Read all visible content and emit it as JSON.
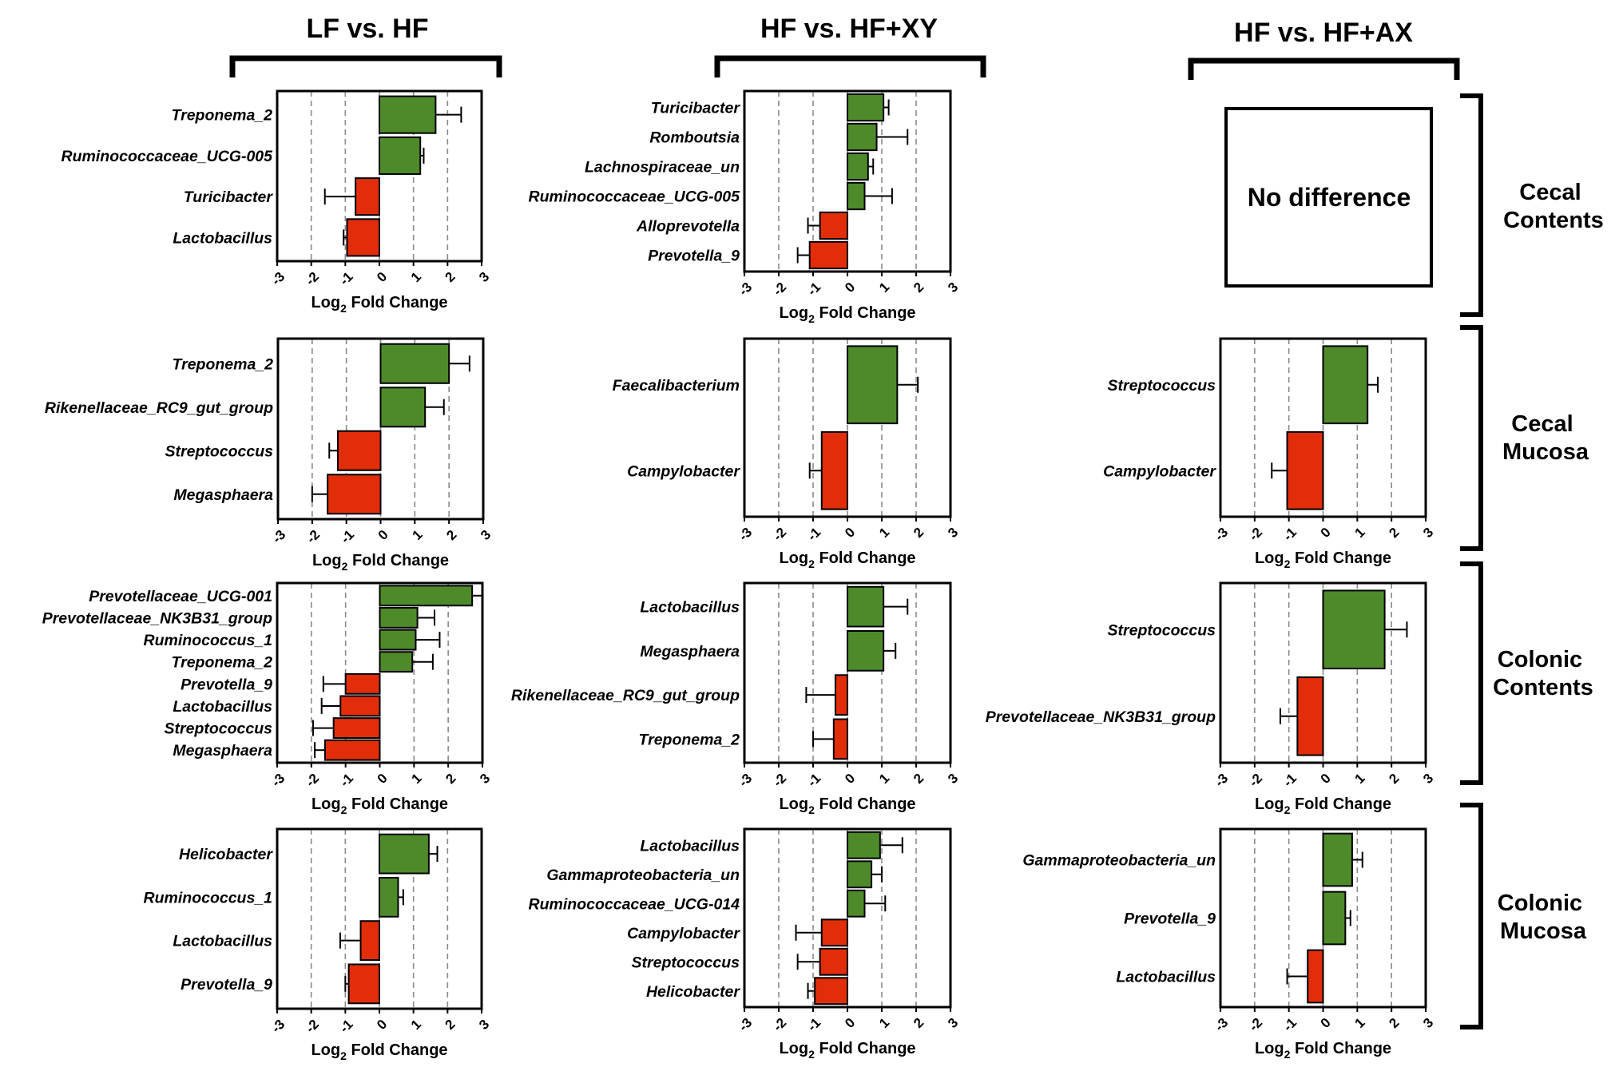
{
  "column_titles": [
    "LF vs. HF",
    "HF vs. HF+XY",
    "HF vs. HF+AX"
  ],
  "row_labels": [
    [
      "Cecal",
      "Contents"
    ],
    [
      "Cecal",
      "Mucosa"
    ],
    [
      "Colonic",
      "Contents"
    ],
    [
      "Colonic",
      "Mucosa"
    ]
  ],
  "no_difference_text": "No difference",
  "axis": {
    "title_main": "Log",
    "title_sub": "2",
    "title_rest": " Fold Change",
    "ticks": [
      "-3",
      "-2",
      "-1",
      "0",
      "1",
      "2",
      "3"
    ]
  },
  "colors": {
    "increase": "#4e8a2a",
    "decrease": "#e12d0a",
    "grid": "#8a8a8a",
    "frame": "#000000"
  },
  "chart_data": [
    {
      "type": "bar",
      "orientation": "horizontal",
      "column": "LF vs. HF",
      "row": "Cecal Contents",
      "xlabel": "Log2 Fold Change",
      "xlim": [
        -3,
        3
      ],
      "grid": true,
      "categories": [
        "Treponema_2",
        "Ruminococcaceae_UCG-005",
        "Turicibacter",
        "Lactobacillus"
      ],
      "values": [
        1.65,
        1.2,
        -0.7,
        -0.95
      ],
      "errors": [
        0.75,
        0.1,
        0.9,
        0.1
      ]
    },
    {
      "type": "bar",
      "orientation": "horizontal",
      "column": "HF vs. HF+XY",
      "row": "Cecal Contents",
      "xlabel": "Log2 Fold Change",
      "xlim": [
        -3,
        3
      ],
      "grid": true,
      "categories": [
        "Turicibacter",
        "Romboutsia",
        "Lachnospiraceae_un",
        "Ruminococcaceae_UCG-005",
        "Alloprevotella",
        "Prevotella_9"
      ],
      "values": [
        1.05,
        0.85,
        0.6,
        0.5,
        -0.8,
        -1.1
      ],
      "errors": [
        0.15,
        0.9,
        0.15,
        0.8,
        0.35,
        0.35
      ]
    },
    {
      "type": "bar",
      "orientation": "horizontal",
      "column": "LF vs. HF",
      "row": "Cecal Mucosa",
      "xlabel": "Log2 Fold Change",
      "xlim": [
        -3,
        3
      ],
      "grid": true,
      "categories": [
        "Treponema_2",
        "Rikenellaceae_RC9_gut_group",
        "Streptococcus",
        "Megasphaera"
      ],
      "values": [
        2.0,
        1.3,
        -1.25,
        -1.55
      ],
      "errors": [
        0.6,
        0.55,
        0.25,
        0.45
      ]
    },
    {
      "type": "bar",
      "orientation": "horizontal",
      "column": "HF vs. HF+XY",
      "row": "Cecal Mucosa",
      "xlabel": "Log2 Fold Change",
      "xlim": [
        -3,
        3
      ],
      "grid": true,
      "categories": [
        "Faecalibacterium",
        "Campylobacter"
      ],
      "values": [
        1.45,
        -0.75
      ],
      "errors": [
        0.6,
        0.35
      ]
    },
    {
      "type": "bar",
      "orientation": "horizontal",
      "column": "HF vs. HF+AX",
      "row": "Cecal Mucosa",
      "xlabel": "Log2 Fold Change",
      "xlim": [
        -3,
        3
      ],
      "grid": true,
      "categories": [
        "Streptococcus",
        "Campylobacter"
      ],
      "values": [
        1.3,
        -1.05
      ],
      "errors": [
        0.3,
        0.45
      ]
    },
    {
      "type": "bar",
      "orientation": "horizontal",
      "column": "LF vs. HF",
      "row": "Colonic Contents",
      "xlabel": "Log2 Fold Change",
      "xlim": [
        -3,
        3
      ],
      "grid": true,
      "categories": [
        "Prevotellaceae_UCG-001",
        "Prevotellaceae_NK3B31_group",
        "Ruminococcus_1",
        "Treponema_2",
        "Prevotella_9",
        "Lactobacillus",
        "Streptococcus",
        "Megasphaera"
      ],
      "values": [
        2.7,
        1.1,
        1.05,
        0.95,
        -1.0,
        -1.15,
        -1.35,
        -1.6
      ],
      "errors": [
        0.3,
        0.5,
        0.7,
        0.6,
        0.65,
        0.55,
        0.6,
        0.3
      ]
    },
    {
      "type": "bar",
      "orientation": "horizontal",
      "column": "HF vs. HF+XY",
      "row": "Colonic Contents",
      "xlabel": "Log2 Fold Change",
      "xlim": [
        -3,
        3
      ],
      "grid": true,
      "categories": [
        "Lactobacillus",
        "Megasphaera",
        "Rikenellaceae_RC9_gut_group",
        "Treponema_2"
      ],
      "values": [
        1.05,
        1.05,
        -0.35,
        -0.4
      ],
      "errors": [
        0.7,
        0.35,
        0.85,
        0.6
      ]
    },
    {
      "type": "bar",
      "orientation": "horizontal",
      "column": "HF vs. HF+AX",
      "row": "Colonic Contents",
      "xlabel": "Log2 Fold Change",
      "xlim": [
        -3,
        3
      ],
      "grid": true,
      "categories": [
        "Streptococcus",
        "Prevotellaceae_NK3B31_group"
      ],
      "values": [
        1.8,
        -0.75
      ],
      "errors": [
        0.65,
        0.5
      ]
    },
    {
      "type": "bar",
      "orientation": "horizontal",
      "column": "LF vs. HF",
      "row": "Colonic Mucosa",
      "xlabel": "Log2 Fold Change",
      "xlim": [
        -3,
        3
      ],
      "grid": true,
      "categories": [
        "Helicobacter",
        "Ruminococcus_1",
        "Lactobacillus",
        "Prevotella_9"
      ],
      "values": [
        1.45,
        0.55,
        -0.55,
        -0.9
      ],
      "errors": [
        0.25,
        0.15,
        0.6,
        0.1
      ]
    },
    {
      "type": "bar",
      "orientation": "horizontal",
      "column": "HF vs. HF+XY",
      "row": "Colonic Mucosa",
      "xlabel": "Log2 Fold Change",
      "xlim": [
        -3,
        3
      ],
      "grid": true,
      "categories": [
        "Lactobacillus",
        "Gammaproteobacteria_un",
        "Ruminococcaceae_UCG-014",
        "Campylobacter",
        "Streptococcus",
        "Helicobacter"
      ],
      "values": [
        0.95,
        0.7,
        0.5,
        -0.75,
        -0.8,
        -0.95
      ],
      "errors": [
        0.65,
        0.3,
        0.6,
        0.75,
        0.65,
        0.2
      ]
    },
    {
      "type": "bar",
      "orientation": "horizontal",
      "column": "HF vs. HF+AX",
      "row": "Colonic Mucosa",
      "xlabel": "Log2 Fold Change",
      "xlim": [
        -3,
        3
      ],
      "grid": true,
      "categories": [
        "Gammaproteobacteria_un",
        "Prevotella_9",
        "Lactobacillus"
      ],
      "values": [
        0.85,
        0.65,
        -0.45
      ],
      "errors": [
        0.3,
        0.15,
        0.6
      ]
    }
  ]
}
